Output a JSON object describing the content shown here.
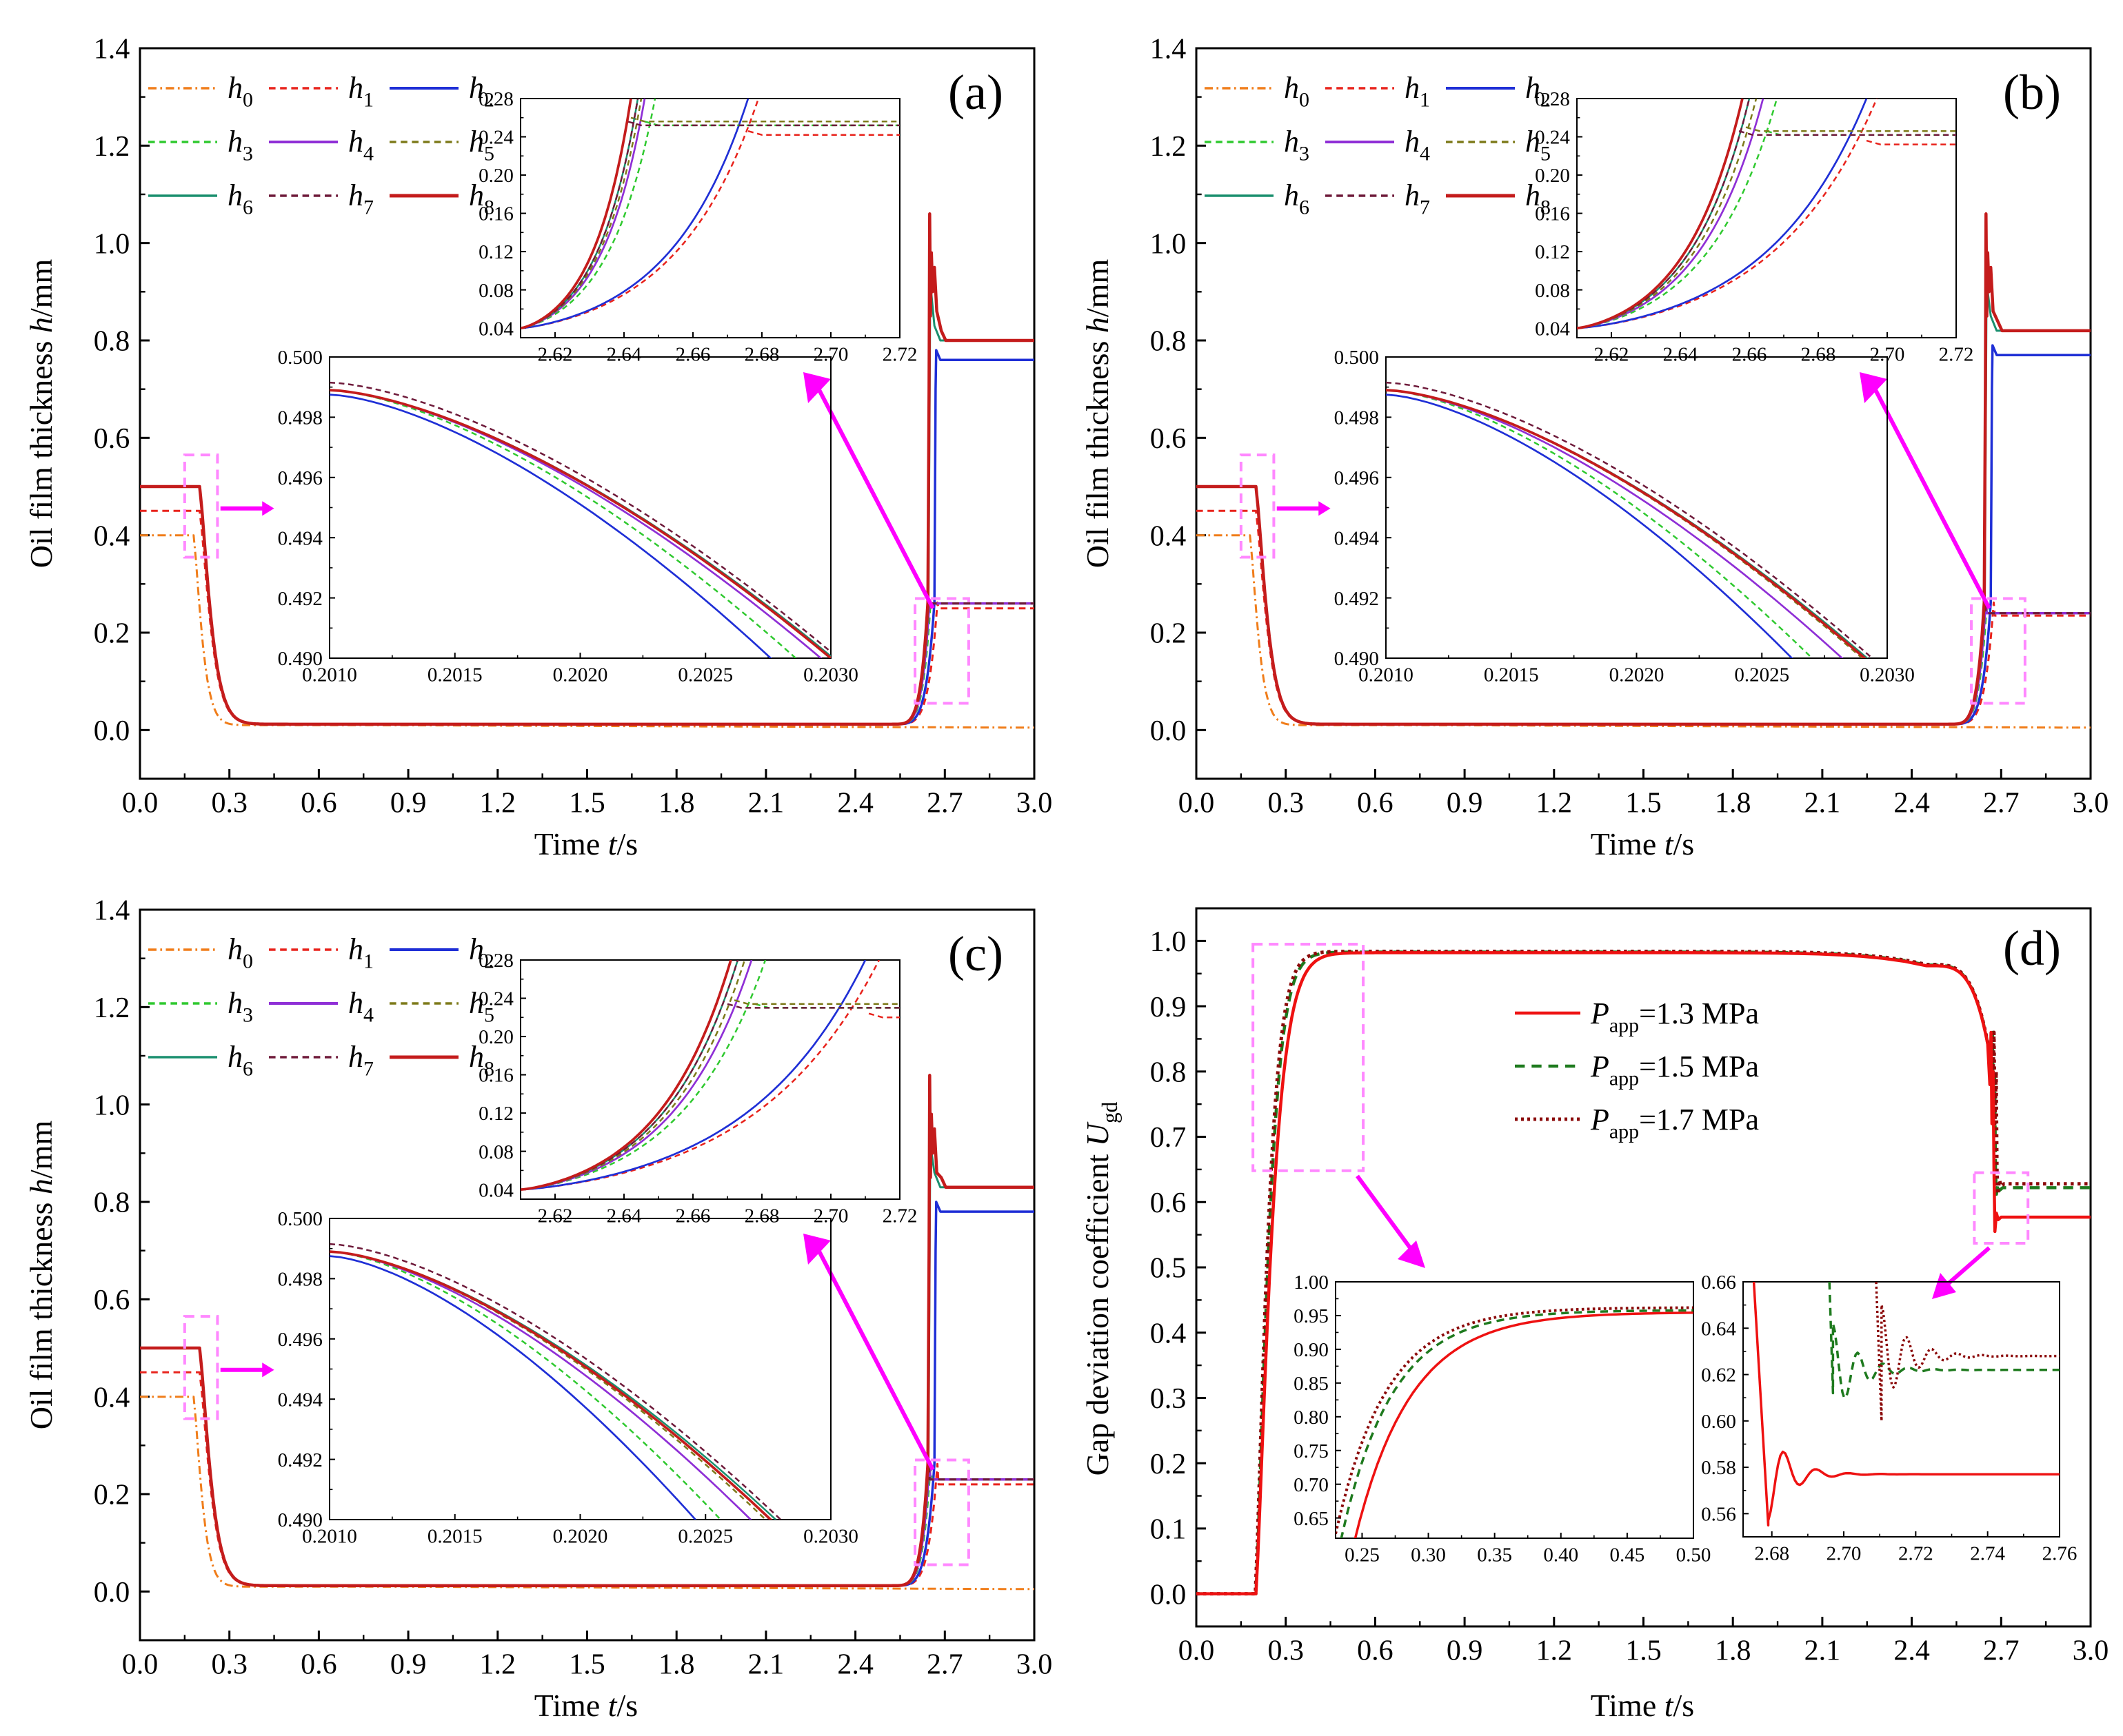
{
  "colors": {
    "h0": "#f07d1a",
    "h1": "#e8231c",
    "h2": "#1f2fd6",
    "h3": "#2fc92f",
    "h4": "#8f2fd6",
    "h5": "#7d7a1a",
    "h6": "#1a8f6e",
    "h7": "#6e1a3a",
    "h8": "#c41c1c",
    "magenta": "#ff00ff",
    "pink_box": "#ff88ff",
    "p13": "#ee1111",
    "p15": "#1e7a1e",
    "p17": "#8b0a0a"
  },
  "chart_data": [
    {
      "panel": "a",
      "type": "line",
      "panel_label": "(a)",
      "xlabel": "Time t/s",
      "ylabel": "Oil film thickness h/mm",
      "xlim": [
        0,
        3.0
      ],
      "ylim": [
        -0.1,
        1.4
      ],
      "xticks": [
        "0.0",
        "0.3",
        "0.6",
        "0.9",
        "1.2",
        "1.5",
        "1.8",
        "2.1",
        "2.4",
        "2.7",
        "3.0"
      ],
      "yticks": [
        "0.0",
        "0.2",
        "0.4",
        "0.6",
        "0.8",
        "1.0",
        "1.2",
        "1.4"
      ],
      "legend": [
        "h0",
        "h1",
        "h2",
        "h3",
        "h4",
        "h5",
        "h6",
        "h7",
        "h8"
      ],
      "final_values": {
        "h0": 0.005,
        "h1": 0.25,
        "h2": 0.76,
        "h3": 0.26,
        "h4": 0.26,
        "h5": 0.26,
        "h6": 0.8,
        "h7": 0.26,
        "h8": 0.8
      },
      "inset_top": {
        "xlim": [
          2.61,
          2.72
        ],
        "ylim": [
          0.03,
          0.28
        ],
        "xticks": [
          "2.62",
          "2.64",
          "2.66",
          "2.68",
          "2.70",
          "2.72"
        ],
        "yticks": [
          "0.04",
          "0.08",
          "0.12",
          "0.16",
          "0.20",
          "0.24",
          "0.28"
        ]
      },
      "inset_bottom": {
        "xlim": [
          0.201,
          0.203
        ],
        "ylim": [
          0.49,
          0.5
        ],
        "xticks": [
          "0.2010",
          "0.2015",
          "0.2020",
          "0.2025",
          "0.2030"
        ],
        "yticks": [
          "0.490",
          "0.492",
          "0.494",
          "0.496",
          "0.498",
          "0.500"
        ]
      }
    },
    {
      "panel": "b",
      "type": "line",
      "panel_label": "(b)",
      "xlabel": "Time t/s",
      "ylabel": "Oil film thickness h/mm",
      "xlim": [
        0,
        3.0
      ],
      "ylim": [
        -0.1,
        1.4
      ],
      "xticks": [
        "0.0",
        "0.3",
        "0.6",
        "0.9",
        "1.2",
        "1.5",
        "1.8",
        "2.1",
        "2.4",
        "2.7",
        "3.0"
      ],
      "yticks": [
        "0.0",
        "0.2",
        "0.4",
        "0.6",
        "0.8",
        "1.0",
        "1.2",
        "1.4"
      ],
      "legend": [
        "h0",
        "h1",
        "h2",
        "h3",
        "h4",
        "h5",
        "h6",
        "h7",
        "h8"
      ],
      "final_values": {
        "h0": 0.005,
        "h1": 0.235,
        "h2": 0.77,
        "h3": 0.24,
        "h4": 0.24,
        "h5": 0.24,
        "h6": 0.82,
        "h7": 0.24,
        "h8": 0.82
      },
      "inset_top": {
        "xlim": [
          2.61,
          2.72
        ],
        "ylim": [
          0.03,
          0.28
        ],
        "xticks": [
          "2.62",
          "2.64",
          "2.66",
          "2.68",
          "2.70",
          "2.72"
        ],
        "yticks": [
          "0.04",
          "0.08",
          "0.12",
          "0.16",
          "0.20",
          "0.24",
          "0.28"
        ]
      },
      "inset_bottom": {
        "xlim": [
          0.201,
          0.203
        ],
        "ylim": [
          0.49,
          0.5
        ],
        "xticks": [
          "0.2010",
          "0.2015",
          "0.2020",
          "0.2025",
          "0.2030"
        ],
        "yticks": [
          "0.490",
          "0.492",
          "0.494",
          "0.496",
          "0.498",
          "0.500"
        ]
      }
    },
    {
      "panel": "c",
      "type": "line",
      "panel_label": "(c)",
      "xlabel": "Time t/s",
      "ylabel": "Oil film thickness h/mm",
      "xlim": [
        0,
        3.0
      ],
      "ylim": [
        -0.1,
        1.4
      ],
      "xticks": [
        "0.0",
        "0.3",
        "0.6",
        "0.9",
        "1.2",
        "1.5",
        "1.8",
        "2.1",
        "2.4",
        "2.7",
        "3.0"
      ],
      "yticks": [
        "0.0",
        "0.2",
        "0.4",
        "0.6",
        "0.8",
        "1.0",
        "1.2",
        "1.4"
      ],
      "legend": [
        "h0",
        "h1",
        "h2",
        "h3",
        "h4",
        "h5",
        "h6",
        "h7",
        "h8"
      ],
      "final_values": {
        "h0": 0.005,
        "h1": 0.22,
        "h2": 0.78,
        "h3": 0.23,
        "h4": 0.23,
        "h5": 0.23,
        "h6": 0.83,
        "h7": 0.23,
        "h8": 0.83
      },
      "inset_top": {
        "xlim": [
          2.61,
          2.72
        ],
        "ylim": [
          0.03,
          0.28
        ],
        "xticks": [
          "2.62",
          "2.64",
          "2.66",
          "2.68",
          "2.70",
          "2.72"
        ],
        "yticks": [
          "0.04",
          "0.08",
          "0.12",
          "0.16",
          "0.20",
          "0.24",
          "0.28"
        ]
      },
      "inset_bottom": {
        "xlim": [
          0.201,
          0.203
        ],
        "ylim": [
          0.49,
          0.5
        ],
        "xticks": [
          "0.2010",
          "0.2015",
          "0.2020",
          "0.2025",
          "0.2030"
        ],
        "yticks": [
          "0.490",
          "0.492",
          "0.494",
          "0.496",
          "0.498",
          "0.500"
        ]
      }
    },
    {
      "panel": "d",
      "type": "line",
      "panel_label": "(d)",
      "xlabel": "Time t/s",
      "ylabel": "Gap deviation coefficient Ugd",
      "xlim": [
        0,
        3.0
      ],
      "ylim": [
        -0.05,
        1.05
      ],
      "xticks": [
        "0.0",
        "0.3",
        "0.6",
        "0.9",
        "1.2",
        "1.5",
        "1.8",
        "2.1",
        "2.4",
        "2.7",
        "3.0"
      ],
      "yticks": [
        "0.0",
        "0.1",
        "0.2",
        "0.3",
        "0.4",
        "0.5",
        "0.6",
        "0.7",
        "0.8",
        "0.9",
        "1.0"
      ],
      "series": [
        {
          "name": "Papp=1.3 MPa",
          "plateau": 0.982,
          "final": 0.577
        },
        {
          "name": "Papp=1.5 MPa",
          "plateau": 0.983,
          "final": 0.622
        },
        {
          "name": "Papp=1.7 MPa",
          "plateau": 0.984,
          "final": 0.628
        }
      ],
      "inset_left": {
        "xlim": [
          0.23,
          0.5
        ],
        "ylim": [
          0.62,
          1.0
        ],
        "xticks": [
          "0.25",
          "0.30",
          "0.35",
          "0.40",
          "0.45",
          "0.50"
        ],
        "yticks": [
          "0.65",
          "0.70",
          "0.75",
          "0.80",
          "0.85",
          "0.90",
          "0.95",
          "1.00"
        ]
      },
      "inset_right": {
        "xlim": [
          2.672,
          2.76
        ],
        "ylim": [
          0.55,
          0.66
        ],
        "xticks": [
          "2.68",
          "2.70",
          "2.72",
          "2.74",
          "2.76"
        ],
        "yticks": [
          "0.56",
          "0.58",
          "0.60",
          "0.62",
          "0.64",
          "0.66"
        ]
      }
    }
  ]
}
